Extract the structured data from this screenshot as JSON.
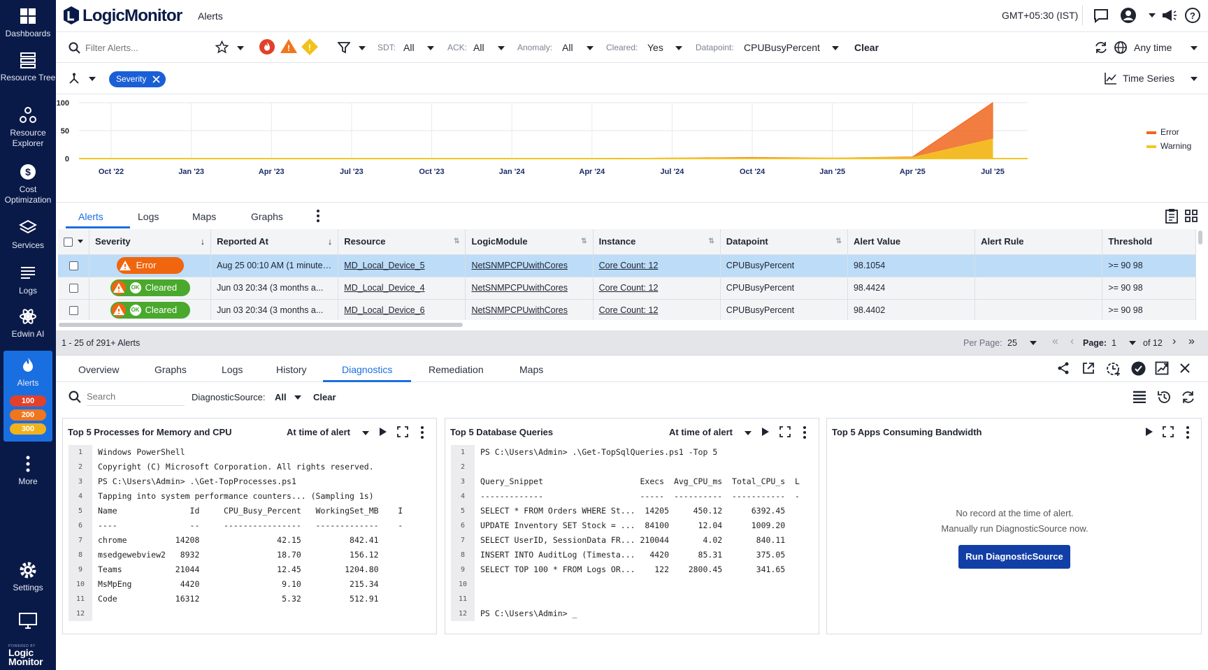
{
  "sidebar": {
    "items": [
      {
        "label": "Dashboards",
        "icon": "dashboards-icon"
      },
      {
        "label": "Resource Tree",
        "icon": "resource-tree-icon"
      },
      {
        "label": "Resource Explorer",
        "icon": "resource-explorer-icon"
      },
      {
        "label": "Cost Optimization",
        "icon": "cost-icon"
      },
      {
        "label": "Services",
        "icon": "services-icon"
      },
      {
        "label": "Logs",
        "icon": "logs-icon"
      },
      {
        "label": "Edwin AI",
        "icon": "edwin-ai-icon"
      },
      {
        "label": "Alerts",
        "icon": "alerts-icon"
      },
      {
        "label": "More",
        "icon": "more-icon"
      },
      {
        "label": "Settings",
        "icon": "settings-icon"
      }
    ],
    "alert_counts": [
      "100",
      "200",
      "300"
    ],
    "brand_small": "POWERED BY",
    "brand_line1": "Logic",
    "brand_line2": "Monitor"
  },
  "topbar": {
    "logo": "LogicMonitor",
    "page": "Alerts",
    "timezone": "GMT+05:30 (IST)"
  },
  "filterbar": {
    "search_placeholder": "Filter Alerts...",
    "sdt_label": "SDT:",
    "sdt_value": "All",
    "ack_label": "ACK:",
    "ack_value": "All",
    "anomaly_label": "Anomaly:",
    "anomaly_value": "All",
    "cleared_label": "Cleared:",
    "cleared_value": "Yes",
    "datapoint_label": "Datapoint:",
    "datapoint_value": "CPUBusyPercent",
    "clear_label": "Clear",
    "time_label": "Any time"
  },
  "groupbar": {
    "chip": "Severity",
    "view": "Time Series"
  },
  "chart_data": {
    "type": "area",
    "x": [
      "Oct '22",
      "Jan '23",
      "Apr '23",
      "Jul '23",
      "Oct '23",
      "Jan '24",
      "Apr '24",
      "Jul '24",
      "Oct '24",
      "Jan '25",
      "Apr '25",
      "Jul '25"
    ],
    "yticks": [
      "100",
      "50",
      "0"
    ],
    "ylim": [
      0,
      100
    ],
    "series": [
      {
        "name": "Error",
        "color": "#f0661e",
        "values": [
          0,
          0,
          0,
          0,
          0,
          0,
          0,
          1,
          2,
          1,
          3,
          100
        ]
      },
      {
        "name": "Warning",
        "color": "#f3c623",
        "values": [
          0,
          0,
          0,
          0,
          0,
          0,
          0,
          1,
          1,
          1,
          2,
          35
        ]
      }
    ],
    "legend": "right"
  },
  "tabs1": [
    "Alerts",
    "Logs",
    "Maps",
    "Graphs"
  ],
  "table": {
    "headers": [
      "Severity",
      "Reported At",
      "Resource",
      "LogicModule",
      "Instance",
      "Datapoint",
      "Alert Value",
      "Alert Rule",
      "Threshold"
    ],
    "rows": [
      {
        "severity": "Error",
        "reported": "Aug 25 00:10 AM (1 minutes...",
        "resource": "MD_Local_Device_5",
        "module": "NetSNMPCPUwithCores",
        "instance": "Core Count: 12",
        "datapoint": "CPUBusyPercent",
        "value": "98.1054",
        "rule": "",
        "threshold": ">= 90 98"
      },
      {
        "severity": "Cleared",
        "reported": "Jun 03 20:34  (3 months a...",
        "resource": "MD_Local_Device_4",
        "module": "NetSNMPCPUwithCores",
        "instance": "Core Count: 12",
        "datapoint": "CPUBusyPercent",
        "value": "98.4424",
        "rule": "",
        "threshold": ">= 90 98"
      },
      {
        "severity": "Cleared",
        "reported": "Jun 03 20:34  (3 months a...",
        "resource": "MD_Local_Device_6",
        "module": "NetSNMPCPUwithCores",
        "instance": "Core Count: 12",
        "datapoint": "CPUBusyPercent",
        "value": "98.4402",
        "rule": "",
        "threshold": ">= 90 98"
      }
    ],
    "ok_badge": "OK"
  },
  "pager": {
    "summary": "1 - 25 of 291+ Alerts",
    "per_page_label": "Per Page:",
    "per_page": "25",
    "page_label": "Page:",
    "page": "1",
    "of": "of 12"
  },
  "tabs2": [
    "Overview",
    "Graphs",
    "Logs",
    "History",
    "Diagnostics",
    "Remediation",
    "Maps"
  ],
  "diag": {
    "search_placeholder": "Search",
    "source_label": "DiagnosticSource:",
    "source_value": "All",
    "clear": "Clear"
  },
  "panels": [
    {
      "title": "Top 5 Processes for Memory and CPU",
      "time": "At time of alert",
      "lines": [
        "Windows PowerShell",
        "Copyright (C) Microsoft Corporation. All rights reserved.",
        "PS C:\\Users\\Admin> .\\Get-TopProcesses.ps1",
        "Tapping into system performance counters... (Sampling 1s)",
        "Name               Id     CPU_Busy_Percent   WorkingSet_MB    I",
        "----               --     ----------------   -------------    -",
        "chrome          14208                42.15          842.41",
        "msedgewebview2   8932                18.70          156.12",
        "Teams           21044                12.45         1204.80",
        "MsMpEng          4420                 9.10          215.34",
        "Code            16312                 5.32          512.91",
        ""
      ]
    },
    {
      "title": "Top 5 Database Queries",
      "time": "At time of alert",
      "lines": [
        "PS C:\\Users\\Admin> .\\Get-TopSqlQueries.ps1 -Top 5",
        "",
        "Query_Snippet                    Execs  Avg_CPU_ms  Total_CPU_s  L",
        "-------------                    -----  ----------  -----------  -",
        "SELECT * FROM Orders WHERE St...  14205     450.12      6392.45",
        "UPDATE Inventory SET Stock = ...  84100      12.04      1009.20",
        "SELECT UserID, SessionData FR... 210044       4.02       840.11",
        "INSERT INTO AuditLog (Timesta...   4420      85.31       375.05",
        "SELECT TOP 100 * FROM Logs OR...    122    2800.45       341.65",
        "",
        "",
        "PS C:\\Users\\Admin> _"
      ]
    },
    {
      "title": "Top 5 Apps Consuming Bandwidth",
      "empty1": "No record at the time of alert.",
      "empty2": "Manually run DiagnosticSource now.",
      "button": "Run DiagnosticSource"
    }
  ]
}
